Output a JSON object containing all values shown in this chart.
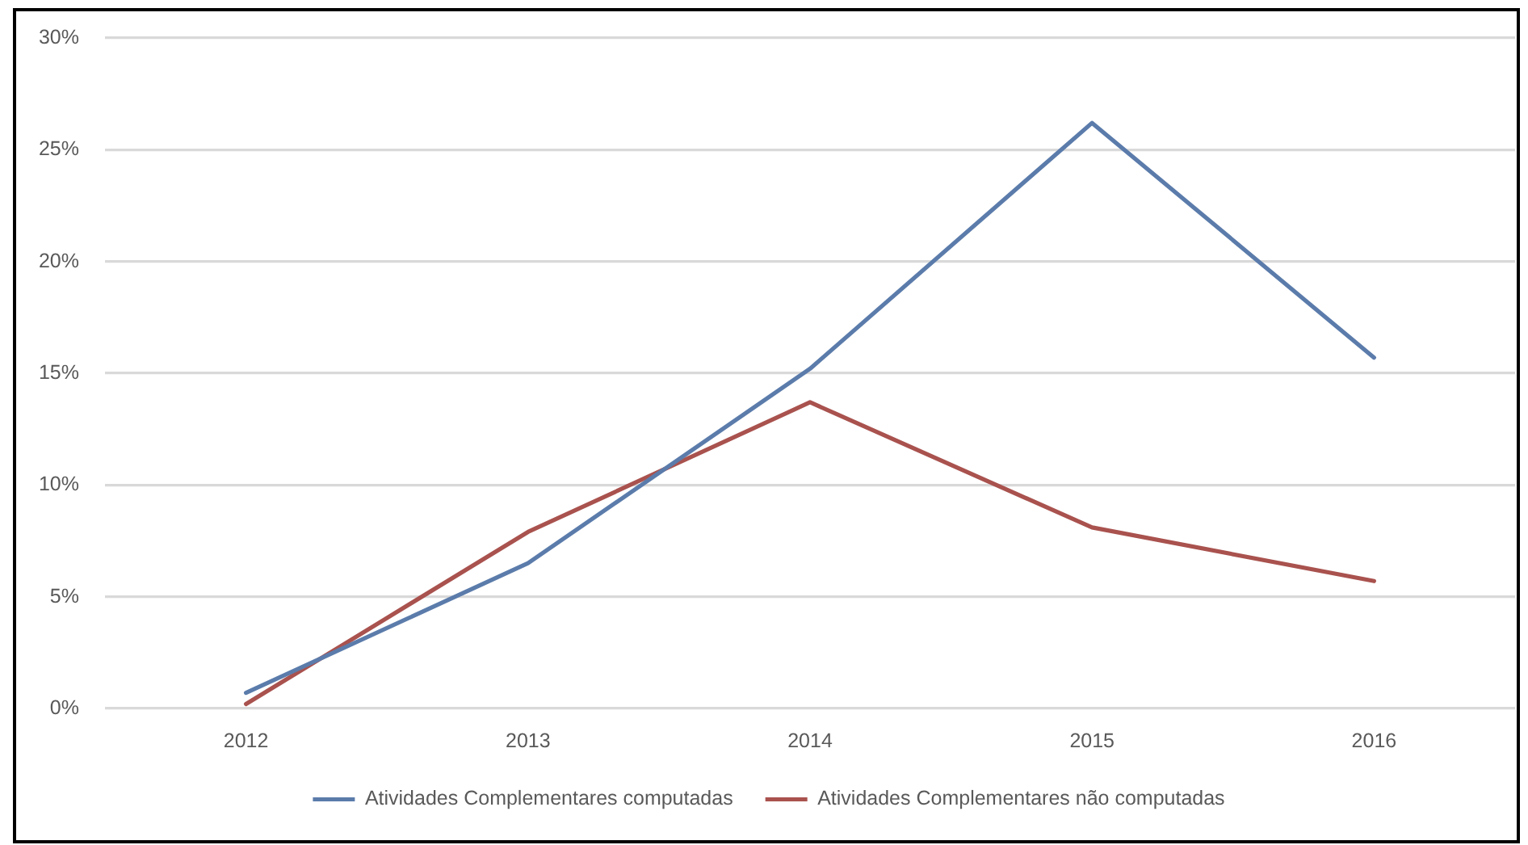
{
  "chart_data": {
    "type": "line",
    "categories": [
      "2012",
      "2013",
      "2014",
      "2015",
      "2016"
    ],
    "series": [
      {
        "name": "Atividades Complementares computadas",
        "color": "#5b7cab",
        "values": [
          0.7,
          6.5,
          15.2,
          26.2,
          15.7
        ]
      },
      {
        "name": "Atividades Complementares não computadas",
        "color": "#a9524e",
        "values": [
          0.2,
          7.9,
          13.7,
          8.1,
          5.7
        ]
      }
    ],
    "ylim": [
      0,
      30
    ],
    "yticks": [
      {
        "value": 0,
        "label": "0%"
      },
      {
        "value": 5,
        "label": "5%"
      },
      {
        "value": 10,
        "label": "10%"
      },
      {
        "value": 15,
        "label": "15%"
      },
      {
        "value": 20,
        "label": "20%"
      },
      {
        "value": 25,
        "label": "25%"
      },
      {
        "value": 30,
        "label": "30%"
      }
    ],
    "grid": "y",
    "legend": "bottom",
    "marker": "none",
    "line_style": "solid"
  }
}
